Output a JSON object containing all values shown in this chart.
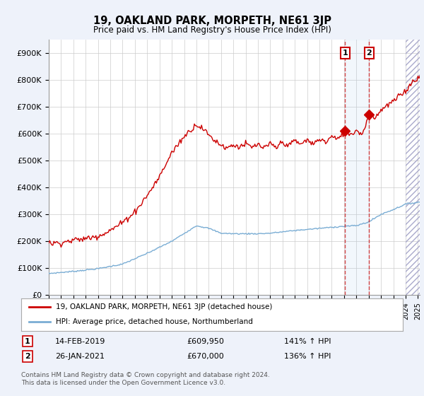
{
  "title": "19, OAKLAND PARK, MORPETH, NE61 3JP",
  "subtitle": "Price paid vs. HM Land Registry's House Price Index (HPI)",
  "ylim": [
    0,
    950000
  ],
  "yticks": [
    0,
    100000,
    200000,
    300000,
    400000,
    500000,
    600000,
    700000,
    800000,
    900000
  ],
  "ytick_labels": [
    "£0",
    "£100K",
    "£200K",
    "£300K",
    "£400K",
    "£500K",
    "£600K",
    "£700K",
    "£800K",
    "£900K"
  ],
  "bg_color": "#eef2fa",
  "plot_bg": "#ffffff",
  "grid_color": "#cccccc",
  "red_color": "#cc0000",
  "blue_color": "#7aadd4",
  "sale1_price": 609950,
  "sale2_price": 670000,
  "sale1_label": "14-FEB-2019",
  "sale2_label": "26-JAN-2021",
  "sale1_hpi_pct": "141% ↑ HPI",
  "sale2_hpi_pct": "136% ↑ HPI",
  "legend1": "19, OAKLAND PARK, MORPETH, NE61 3JP (detached house)",
  "legend2": "HPI: Average price, detached house, Northumberland",
  "footnote": "Contains HM Land Registry data © Crown copyright and database right 2024.\nThis data is licensed under the Open Government Licence v3.0.",
  "xstart_year": 1995,
  "xend_year": 2025,
  "sale1_x": 2019.08,
  "sale2_x": 2021.04,
  "hpi_key_years": [
    1995,
    1997,
    1999,
    2001,
    2003,
    2005,
    2007,
    2008,
    2009,
    2010,
    2011,
    2012,
    2013,
    2014,
    2015,
    2016,
    2017,
    2018,
    2019,
    2020,
    2021,
    2022,
    2023,
    2024,
    2025
  ],
  "hpi_key_values": [
    80000,
    88000,
    98000,
    115000,
    155000,
    200000,
    258000,
    248000,
    230000,
    228000,
    228000,
    228000,
    230000,
    235000,
    240000,
    244000,
    248000,
    252000,
    256000,
    258000,
    272000,
    300000,
    318000,
    338000,
    345000
  ],
  "red_key_years": [
    1995,
    1996,
    1997,
    1998,
    1999,
    2000,
    2001,
    2002,
    2003,
    2004,
    2005,
    2006,
    2007,
    2007.5,
    2008,
    2008.5,
    2009,
    2009.5,
    2010,
    2010.5,
    2011,
    2011.5,
    2012,
    2012.5,
    2013,
    2013.5,
    2014,
    2014.5,
    2015,
    2015.5,
    2016,
    2016.5,
    2017,
    2017.5,
    2018,
    2018.5,
    2019.08,
    2019.5,
    2020,
    2020.5,
    2021.04,
    2021.5,
    2022,
    2022.5,
    2023,
    2023.5,
    2024,
    2024.5,
    2025
  ],
  "red_key_values": [
    192000,
    195000,
    204000,
    210000,
    220000,
    240000,
    270000,
    310000,
    370000,
    440000,
    530000,
    590000,
    635000,
    620000,
    595000,
    575000,
    558000,
    548000,
    558000,
    552000,
    562000,
    548000,
    560000,
    545000,
    562000,
    548000,
    570000,
    555000,
    575000,
    560000,
    578000,
    560000,
    582000,
    568000,
    590000,
    578000,
    609950,
    598000,
    612000,
    600000,
    670000,
    658000,
    690000,
    705000,
    720000,
    740000,
    760000,
    790000,
    810000
  ]
}
